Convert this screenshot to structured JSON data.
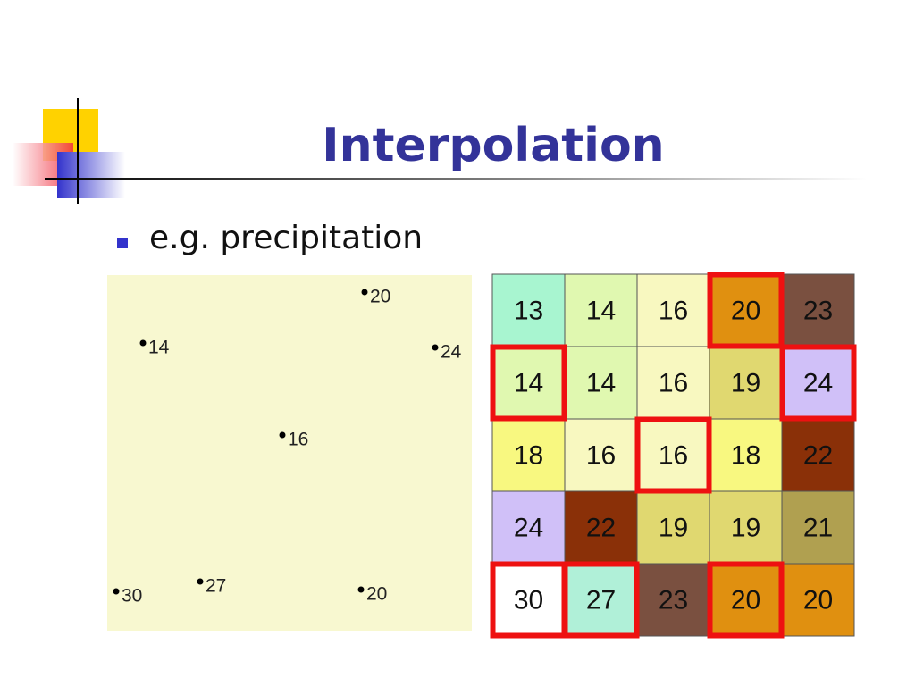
{
  "title": "Interpolation",
  "bullet": "e.g. precipitation",
  "points": [
    20,
    14,
    24,
    16,
    30,
    27,
    20
  ],
  "grid": {
    "rows": [
      [
        13,
        14,
        16,
        20,
        23
      ],
      [
        14,
        14,
        16,
        19,
        24
      ],
      [
        18,
        16,
        16,
        18,
        22
      ],
      [
        24,
        22,
        19,
        19,
        21
      ],
      [
        30,
        27,
        23,
        20,
        20
      ]
    ]
  }
}
